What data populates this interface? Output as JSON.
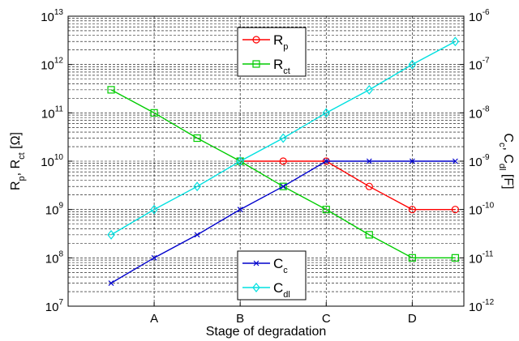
{
  "chart_data": {
    "type": "line",
    "xlabel": "Stage of degradation",
    "x_tick_labels": [
      "A",
      "B",
      "C",
      "D"
    ],
    "left_axis": {
      "label_parts": [
        "R",
        "p",
        ", R",
        "ct",
        " [Ω]"
      ],
      "scale": "log",
      "range": [
        10000000.0,
        10000000000000.0
      ],
      "tick_exponents": [
        7,
        8,
        9,
        10,
        11,
        12,
        13
      ]
    },
    "right_axis": {
      "label_parts": [
        "C",
        "c",
        ", C",
        "dl",
        " [F]"
      ],
      "scale": "log",
      "range": [
        1e-12,
        1e-06
      ],
      "tick_exponents": [
        -12,
        -11,
        -10,
        -9,
        -8,
        -7,
        -6
      ]
    },
    "x_range": [
      0,
      9.2
    ],
    "grid": true,
    "series": [
      {
        "name": "R_p",
        "label_main": "R",
        "label_sub": "p",
        "axis": "left",
        "color": "#ff0000",
        "marker": "circle",
        "x": [
          4,
          5,
          6,
          7,
          8,
          9
        ],
        "y": [
          10000000000.0,
          10000000000.0,
          10000000000.0,
          3000000000.0,
          1000000000.0,
          1000000000.0
        ]
      },
      {
        "name": "R_ct",
        "label_main": "R",
        "label_sub": "ct",
        "axis": "left",
        "color": "#00cc00",
        "marker": "square",
        "x": [
          1,
          2,
          3,
          4,
          5,
          6,
          7,
          8,
          9
        ],
        "y": [
          300000000000.0,
          100000000000.0,
          30000000000.0,
          10000000000.0,
          3000000000.0,
          1000000000.0,
          300000000.0,
          100000000.0,
          100000000.0
        ]
      },
      {
        "name": "C_c",
        "label_main": "C",
        "label_sub": "c",
        "axis": "right",
        "color": "#0000cc",
        "marker": "x",
        "x": [
          1,
          2,
          3,
          4,
          5,
          6,
          7,
          8,
          9
        ],
        "y": [
          3e-12,
          1e-11,
          3e-11,
          1e-10,
          3e-10,
          1e-09,
          1e-09,
          1e-09,
          1e-09
        ]
      },
      {
        "name": "C_dl",
        "label_main": "C",
        "label_sub": "dl",
        "axis": "right",
        "color": "#00e0e0",
        "marker": "diamond",
        "x": [
          1,
          2,
          3,
          4,
          5,
          6,
          7,
          8,
          9
        ],
        "y": [
          3e-11,
          1e-10,
          3e-10,
          1e-09,
          3e-09,
          1e-08,
          3e-08,
          1e-07,
          3e-07
        ]
      }
    ],
    "legends": [
      {
        "placement": "top-center",
        "series": [
          "R_p",
          "R_ct"
        ]
      },
      {
        "placement": "bottom-center",
        "series": [
          "C_c",
          "C_dl"
        ]
      }
    ]
  }
}
